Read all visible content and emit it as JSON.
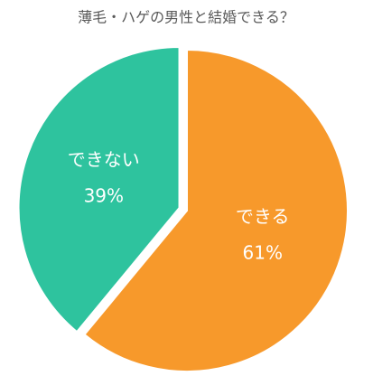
{
  "chart_data": {
    "type": "pie",
    "title": "薄毛・ハゲの男性と結婚できる？",
    "categories": [
      "できる",
      "できない"
    ],
    "values": [
      61,
      39
    ],
    "value_labels": [
      "61%",
      "39%"
    ],
    "colors": [
      "#F7992B",
      "#2EC39E"
    ],
    "exploded": [
      false,
      true
    ]
  }
}
